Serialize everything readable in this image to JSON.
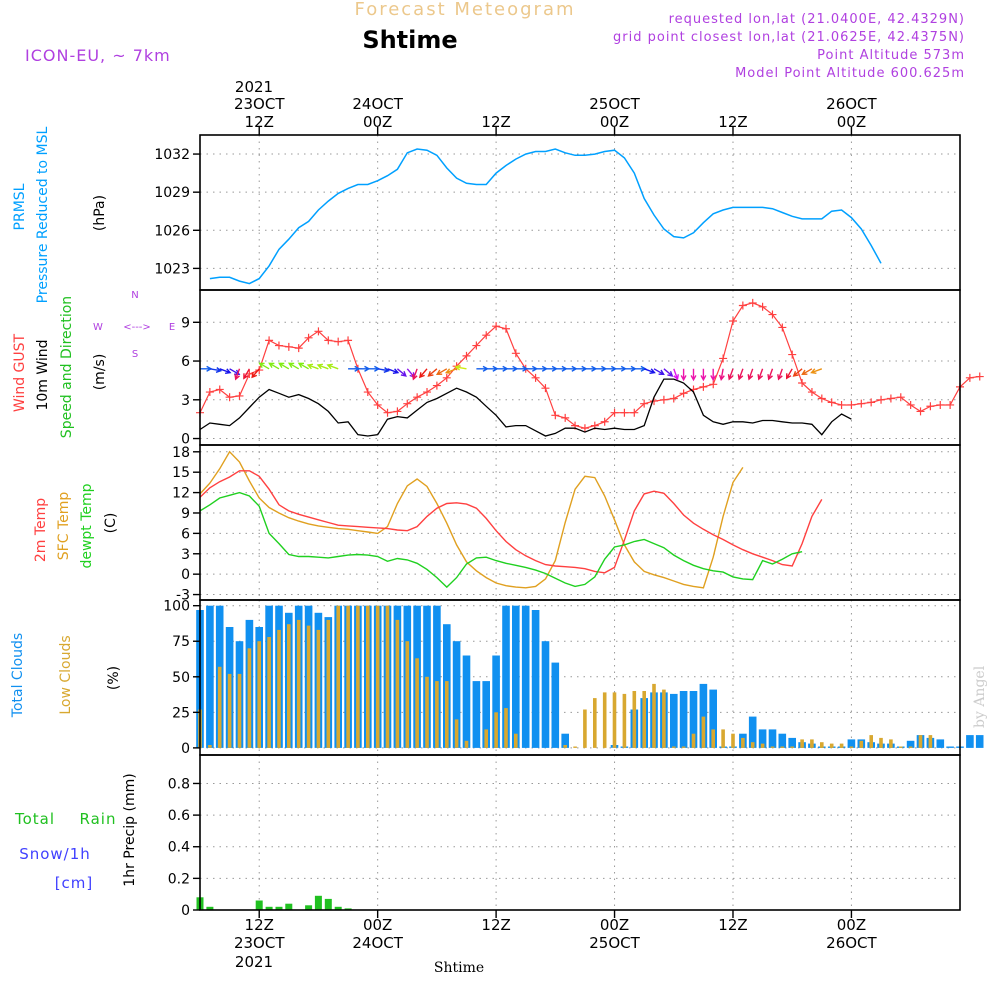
{
  "header": {
    "forecast_label": "Forecast Meteogram",
    "location": "Shtime",
    "model": "ICON-EU, ~ 7km",
    "requested": "requested lon,lat (21.0400E, 42.4329N)",
    "grid": "grid point closest lon,lat (21.0625E, 42.4375N)",
    "point_alt": "Point Altitude 573m",
    "model_alt": "Model Point Altitude 600.625m",
    "watermark": "by Angel"
  },
  "time_axis": {
    "top_year": "2021",
    "ticks": [
      {
        "h": 12,
        "l1": "23OCT",
        "l2": "12Z",
        "order": "date-first"
      },
      {
        "h": 24,
        "l1": "24OCT",
        "l2": "00Z",
        "order": "date-first"
      },
      {
        "h": 36,
        "l1": "",
        "l2": "12Z",
        "order": "date-first"
      },
      {
        "h": 48,
        "l1": "25OCT",
        "l2": "00Z",
        "order": "date-first"
      },
      {
        "h": 60,
        "l1": "",
        "l2": "12Z",
        "order": "date-first"
      },
      {
        "h": 72,
        "l1": "26OCT",
        "l2": "00Z",
        "order": "date-first"
      }
    ],
    "bottom_xlabel": "Shtime",
    "bottom_year": "2021",
    "range_hours": [
      6,
      83
    ]
  },
  "colors": {
    "pressure": "#00a0ff",
    "gust": "#ff4040",
    "wind": "#000000",
    "dir": "#20c020",
    "t2m": "#ff4040",
    "tsfc": "#e0a020",
    "td": "#20d020",
    "cloud_total": "#1090f0",
    "cloud_low": "#d8a830",
    "rain": "#20c020",
    "snow": "#4040ff",
    "purple": "#b040e0"
  },
  "chart_data": [
    {
      "type": "line",
      "title": "PRMSL Pressure Reduced to MSL",
      "left_labels": [
        "PRMSL",
        "Pressure Reduced to MSL",
        "(hPa)"
      ],
      "ylim": [
        1021.3,
        1033.5
      ],
      "yticks": [
        1023,
        1026,
        1029,
        1032
      ],
      "x_start": 7,
      "series": [
        {
          "name": "pressure",
          "values": [
            1022.2,
            1022.3,
            1022.3,
            1022.0,
            1021.8,
            1022.2,
            1023.2,
            1024.5,
            1025.3,
            1026.2,
            1026.7,
            1027.6,
            1028.3,
            1028.9,
            1029.3,
            1029.6,
            1029.6,
            1029.9,
            1030.3,
            1030.8,
            1032.1,
            1032.4,
            1032.3,
            1031.9,
            1030.9,
            1030.1,
            1029.7,
            1029.6,
            1029.6,
            1030.5,
            1031.1,
            1031.6,
            1032.0,
            1032.2,
            1032.2,
            1032.4,
            1032.1,
            1031.9,
            1031.9,
            1032.0,
            1032.2,
            1032.3,
            1031.7,
            1030.5,
            1028.5,
            1027.2,
            1026.1,
            1025.5,
            1025.4,
            1025.8,
            1026.6,
            1027.3,
            1027.6,
            1027.8,
            1027.8,
            1027.8,
            1027.8,
            1027.7,
            1027.4,
            1027.1,
            1026.9,
            1026.9,
            1026.9,
            1027.5,
            1027.6,
            1027.0,
            1026.1,
            1024.8,
            1023.4
          ]
        }
      ]
    },
    {
      "type": "line",
      "title": "Wind GUST / 10m Wind Speed and Direction",
      "left_labels": [
        "Wind GUST",
        "10m Wind",
        "Speed and Direction",
        "(m/s)"
      ],
      "compass": {
        "n": "N",
        "s": "S",
        "w": "W",
        "e": "E",
        "pointer": "<--->"
      },
      "ylim": [
        -0.5,
        11.5
      ],
      "yticks": [
        0,
        3,
        6,
        9
      ],
      "x_start": 6,
      "series": [
        {
          "name": "gust",
          "values": [
            2.0,
            3.6,
            3.8,
            3.2,
            3.3,
            5.0,
            5.3,
            7.6,
            7.2,
            7.1,
            7.0,
            7.8,
            8.3,
            7.6,
            7.5,
            7.6,
            5.4,
            3.6,
            2.6,
            2.0,
            2.1,
            2.7,
            3.2,
            3.6,
            4.1,
            4.7,
            5.6,
            6.4,
            7.2,
            8.0,
            8.7,
            8.5,
            6.6,
            5.4,
            4.7,
            3.9,
            1.8,
            1.6,
            1.0,
            0.8,
            1.0,
            1.3,
            2.0,
            2.0,
            2.0,
            2.7,
            2.9,
            3.0,
            3.1,
            3.5,
            3.8,
            4.0,
            4.2,
            6.2,
            9.1,
            10.3,
            10.5,
            10.2,
            9.6,
            8.6,
            6.5,
            4.3,
            3.6,
            3.1,
            2.8,
            2.6,
            2.6,
            2.7,
            2.8,
            3.0,
            3.1,
            3.2,
            2.6,
            2.1,
            2.5,
            2.6,
            2.6,
            4.0,
            4.7,
            4.8
          ]
        },
        {
          "name": "wind",
          "values": [
            0.7,
            1.2,
            1.1,
            1.0,
            1.6,
            2.4,
            3.2,
            3.8,
            3.5,
            3.2,
            3.4,
            3.1,
            2.7,
            2.1,
            1.2,
            1.3,
            0.3,
            0.2,
            0.3,
            1.5,
            1.7,
            1.6,
            2.2,
            2.8,
            3.1,
            3.5,
            3.9,
            3.6,
            3.2,
            2.5,
            1.8,
            0.9,
            1.0,
            1.0,
            0.6,
            0.2,
            0.4,
            0.8,
            0.8,
            0.5,
            0.8,
            0.7,
            0.8,
            0.7,
            0.7,
            1.0,
            3.2,
            4.6,
            4.6,
            4.3,
            3.6,
            1.8,
            1.3,
            1.1,
            1.3,
            1.3,
            1.2,
            1.4,
            1.4,
            1.3,
            1.2,
            1.2,
            1.1,
            0.3,
            1.3,
            1.9,
            1.5
          ]
        }
      ],
      "direction_deg": [
        90,
        100,
        110,
        120,
        200,
        210,
        220,
        300,
        300,
        300,
        300,
        300,
        290,
        290,
        290,
        90,
        90,
        90,
        100,
        110,
        130,
        140,
        200,
        220,
        230,
        240,
        250,
        280,
        90,
        90,
        90,
        90,
        90,
        90,
        90,
        90,
        90,
        90,
        90,
        90,
        90,
        90,
        90,
        90,
        90,
        110,
        120,
        130,
        160,
        180,
        180,
        180,
        180,
        190,
        200,
        200,
        200,
        200,
        200,
        200,
        210,
        230,
        240,
        250
      ],
      "direction_x_start": 6,
      "direction_y_level": 5.4
    },
    {
      "type": "line",
      "title": "2m Temp / SFC Temp / dewpt Temp",
      "left_labels": [
        "2m Temp",
        "SFC Temp",
        "dewpt Temp",
        "(C)"
      ],
      "ylim": [
        -3.8,
        19
      ],
      "yticks": [
        -3,
        0,
        3,
        6,
        9,
        12,
        15,
        18
      ],
      "x_start": 6,
      "series": [
        {
          "name": "t2m",
          "values": [
            11.3,
            12.7,
            13.6,
            14.3,
            15.2,
            15.2,
            14.4,
            12.5,
            10.2,
            9.3,
            8.8,
            8.4,
            8.0,
            7.6,
            7.2,
            7.1,
            7.0,
            6.9,
            6.8,
            6.7,
            6.5,
            6.4,
            7.0,
            8.5,
            9.7,
            10.4,
            10.5,
            10.3,
            9.7,
            8.2,
            6.4,
            4.8,
            3.6,
            2.7,
            2.0,
            1.4,
            1.2,
            1.1,
            1.0,
            0.8,
            0.4,
            0.2,
            1.0,
            5.0,
            9.3,
            11.8,
            12.2,
            11.9,
            10.4,
            8.7,
            7.5,
            6.6,
            5.8,
            5.1,
            4.3,
            3.6,
            3.0,
            2.5,
            2.0,
            1.4,
            1.2,
            4.5,
            8.5,
            11.0
          ]
        },
        {
          "name": "tsfc",
          "values": [
            11.8,
            13.4,
            15.5,
            18.0,
            16.5,
            13.7,
            11.2,
            9.8,
            9.0,
            8.3,
            7.8,
            7.4,
            7.1,
            6.9,
            6.7,
            6.6,
            6.4,
            6.2,
            6.0,
            7.0,
            10.4,
            13.0,
            14.0,
            12.9,
            10.4,
            7.5,
            4.3,
            1.8,
            0.5,
            -0.5,
            -1.3,
            -1.7,
            -1.9,
            -2.0,
            -1.8,
            -0.7,
            2.0,
            7.6,
            12.5,
            14.4,
            14.2,
            11.5,
            8.0,
            4.3,
            1.8,
            0.4,
            -0.1,
            -0.5,
            -1.0,
            -1.5,
            -1.8,
            -2.0,
            2.5,
            8.5,
            13.5,
            15.7
          ]
        },
        {
          "name": "td",
          "values": [
            9.3,
            10.2,
            11.2,
            11.6,
            12.0,
            11.5,
            10.0,
            6.0,
            4.5,
            2.9,
            2.6,
            2.6,
            2.5,
            2.4,
            2.6,
            2.8,
            2.9,
            2.8,
            2.6,
            1.9,
            2.3,
            2.1,
            1.6,
            0.7,
            -0.5,
            -1.9,
            -0.5,
            1.5,
            2.4,
            2.5,
            2.0,
            1.6,
            1.3,
            1.0,
            0.6,
            0.1,
            -0.6,
            -1.3,
            -1.8,
            -1.5,
            -0.4,
            2.2,
            4.0,
            4.3,
            4.8,
            5.1,
            4.5,
            3.9,
            2.8,
            2.0,
            1.3,
            0.8,
            0.5,
            0.3,
            -0.4,
            -0.7,
            -0.8,
            2.0,
            1.5,
            2.2,
            3.0,
            3.3
          ]
        }
      ]
    },
    {
      "type": "bar",
      "title": "Total Clouds / Low Clouds",
      "left_labels": [
        "Total Clouds",
        "Low Clouds",
        "(%)"
      ],
      "ylim": [
        -5,
        104
      ],
      "yticks": [
        0,
        25,
        50,
        75,
        100
      ],
      "x_start": 6,
      "series": [
        {
          "name": "total",
          "values": [
            97,
            100,
            100,
            85,
            75,
            90,
            85,
            100,
            100,
            95,
            100,
            100,
            95,
            92,
            100,
            100,
            100,
            100,
            100,
            100,
            100,
            100,
            100,
            100,
            100,
            87,
            75,
            65,
            47,
            47,
            65,
            100,
            100,
            100,
            97,
            75,
            60,
            10,
            0,
            0,
            0,
            0,
            2,
            1,
            27,
            35,
            39,
            39,
            38,
            40,
            40,
            45,
            41,
            1,
            1,
            10,
            22,
            13,
            13,
            10,
            7,
            4,
            3,
            1,
            1,
            1,
            6,
            6,
            4,
            3,
            3,
            1,
            5,
            9,
            7,
            6,
            1,
            1,
            9,
            9
          ]
        },
        {
          "name": "low",
          "values": [
            27,
            2,
            57,
            52,
            52,
            70,
            75,
            78,
            83,
            87,
            90,
            86,
            83,
            90,
            100,
            100,
            100,
            100,
            100,
            100,
            90,
            75,
            63,
            50,
            47,
            47,
            20,
            5,
            0,
            13,
            25,
            28,
            10,
            0,
            0,
            0,
            0,
            2,
            1,
            27,
            35,
            39,
            39,
            38,
            40,
            40,
            45,
            41,
            1,
            1,
            10,
            22,
            13,
            13,
            10,
            7,
            4,
            3,
            1,
            1,
            1,
            6,
            6,
            4,
            3,
            3,
            1,
            5,
            9,
            7,
            6,
            1,
            1,
            9,
            9
          ]
        }
      ],
      "low_x_start": 6
    },
    {
      "type": "bar",
      "title": "1hr Precip",
      "ylabel": "1hr Precip (mm)",
      "left_labels": [
        "Total",
        "Rain",
        "Snow/1h",
        "[cm]"
      ],
      "ylim": [
        0,
        0.98
      ],
      "yticks": [
        0,
        0.2,
        0.4,
        0.6,
        0.8
      ],
      "x_start": 6,
      "series": [
        {
          "name": "rain",
          "values": [
            0.08,
            0.02,
            0,
            0,
            0,
            0,
            0.06,
            0.02,
            0.02,
            0.04,
            0,
            0.03,
            0.09,
            0.07,
            0.02,
            0.01,
            0,
            0,
            0,
            0
          ]
        }
      ]
    }
  ]
}
